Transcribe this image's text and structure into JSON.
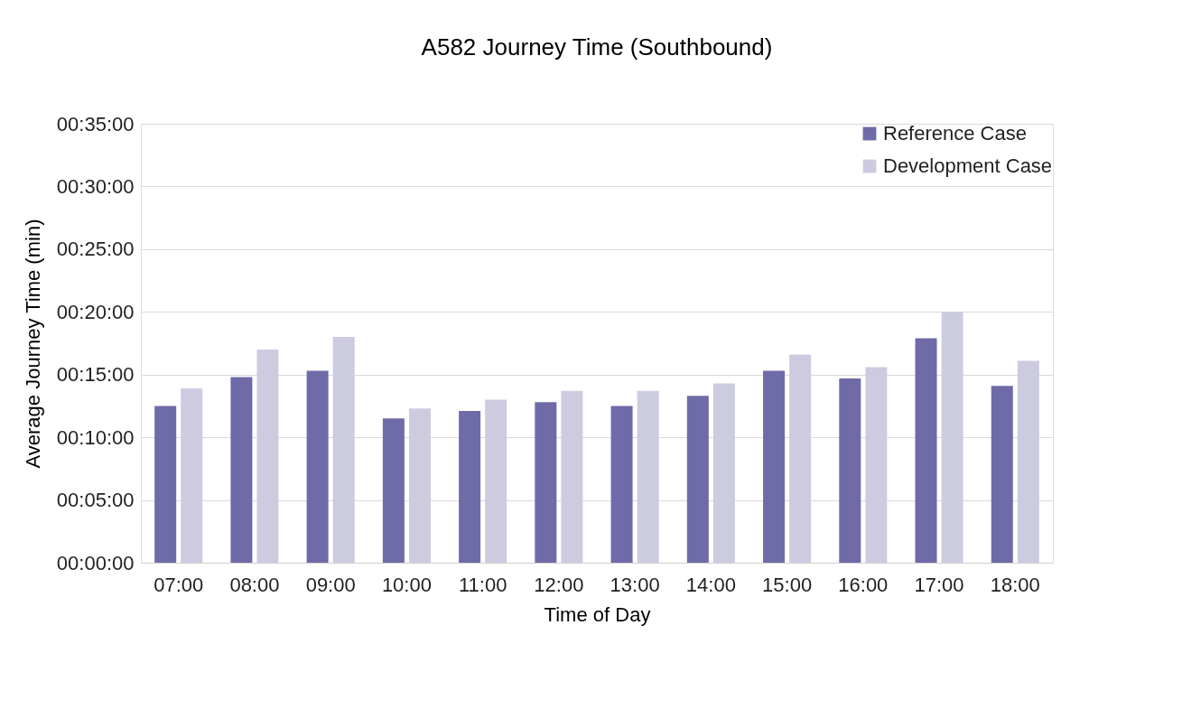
{
  "chart_data": {
    "type": "bar",
    "title": "A582 Journey Time (Southbound)",
    "xlabel": "Time of Day",
    "ylabel": "Average Journey Time (min)",
    "categories": [
      "07:00",
      "08:00",
      "09:00",
      "10:00",
      "11:00",
      "12:00",
      "13:00",
      "14:00",
      "15:00",
      "16:00",
      "17:00",
      "18:00"
    ],
    "series": [
      {
        "name": "Reference Case",
        "color": "#6f6aa8",
        "values": [
          12.5,
          14.8,
          15.3,
          11.5,
          12.1,
          12.8,
          12.5,
          13.3,
          15.3,
          14.7,
          17.9,
          14.1
        ]
      },
      {
        "name": "Development Case",
        "color": "#cdcbe0",
        "values": [
          13.9,
          17.0,
          18.0,
          12.3,
          13.0,
          13.7,
          13.7,
          14.3,
          16.6,
          15.6,
          20.0,
          16.1
        ]
      }
    ],
    "ylim": [
      0,
      35
    ],
    "yticks": [
      {
        "value": 0,
        "label": "00:00:00"
      },
      {
        "value": 5,
        "label": "00:05:00"
      },
      {
        "value": 10,
        "label": "00:10:00"
      },
      {
        "value": 15,
        "label": "00:15:00"
      },
      {
        "value": 20,
        "label": "00:20:00"
      },
      {
        "value": 25,
        "label": "00:25:00"
      },
      {
        "value": 30,
        "label": "00:30:00"
      },
      {
        "value": 35,
        "label": "00:35:00"
      }
    ],
    "grid": "y",
    "legend": "top right"
  }
}
